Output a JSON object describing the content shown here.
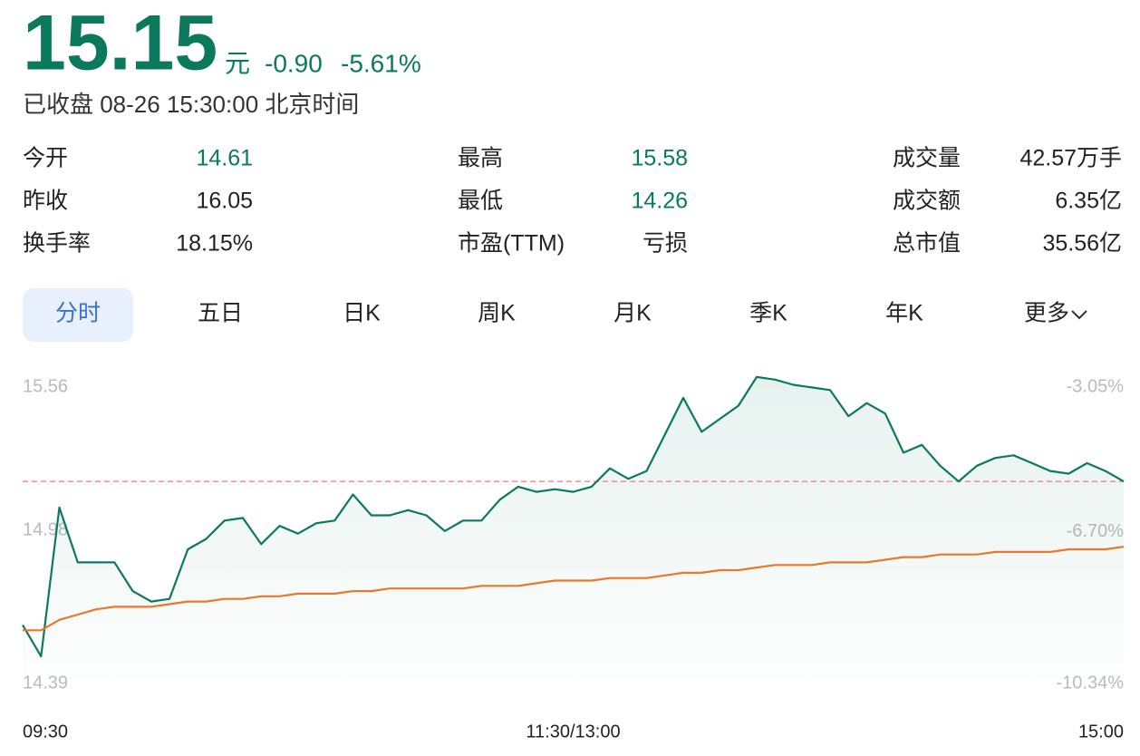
{
  "quote": {
    "price": "15.15",
    "unit": "元",
    "change": "-0.90",
    "change_pct": "-5.61%",
    "status": "已收盘 08-26 15:30:00 北京时间",
    "color": "#0b7a5c"
  },
  "stats": [
    [
      {
        "label": "今开",
        "value": "14.61",
        "color": "#0b7a5c"
      },
      {
        "label": "最高",
        "value": "15.58",
        "color": "#0b7a5c"
      },
      {
        "label": "成交量",
        "value": "42.57万手",
        "color": "#222222"
      }
    ],
    [
      {
        "label": "昨收",
        "value": "16.05",
        "color": "#222222"
      },
      {
        "label": "最低",
        "value": "14.26",
        "color": "#0b7a5c"
      },
      {
        "label": "成交额",
        "value": "6.35亿",
        "color": "#222222"
      }
    ],
    [
      {
        "label": "换手率",
        "value": "18.15%",
        "color": "#222222"
      },
      {
        "label": "市盈(TTM)",
        "value": "亏损",
        "color": "#222222"
      },
      {
        "label": "总市值",
        "value": "35.56亿",
        "color": "#222222"
      }
    ]
  ],
  "tabs": [
    "分时",
    "五日",
    "日K",
    "周K",
    "月K",
    "季K",
    "年K",
    "更多"
  ],
  "active_tab": 0,
  "chart_data": {
    "type": "line",
    "xlim": [
      0,
      60
    ],
    "xticks": [
      {
        "value": 0,
        "label": "09:30"
      },
      {
        "value": 30,
        "label": "11:30/13:00"
      },
      {
        "value": 60,
        "label": "15:00"
      }
    ],
    "ylim": [
      14.39,
      15.56
    ],
    "yticks": [
      15.56,
      14.98,
      14.39
    ],
    "y2lim": [
      -10.34,
      -3.05
    ],
    "y2ticks": [
      {
        "value": -3.05,
        "label": "-3.05%"
      },
      {
        "value": -6.7,
        "label": "-6.70%"
      },
      {
        "value": -10.34,
        "label": "-10.34%"
      }
    ],
    "ref_line": {
      "value": 15.15,
      "color": "#f08c8c"
    },
    "series": [
      {
        "color": "#0b7a5c",
        "area": true,
        "values": [
          14.6,
          14.48,
          15.05,
          14.84,
          14.84,
          14.84,
          14.73,
          14.69,
          14.7,
          14.89,
          14.93,
          15.0,
          15.01,
          14.91,
          14.98,
          14.95,
          14.99,
          15.0,
          15.1,
          15.02,
          15.02,
          15.04,
          15.02,
          14.96,
          15.0,
          15.0,
          15.08,
          15.13,
          15.11,
          15.12,
          15.11,
          15.13,
          15.2,
          15.16,
          15.19,
          15.33,
          15.47,
          15.34,
          15.39,
          15.44,
          15.55,
          15.54,
          15.52,
          15.51,
          15.5,
          15.4,
          15.45,
          15.41,
          15.26,
          15.29,
          15.21,
          15.15,
          15.21,
          15.24,
          15.25,
          15.22,
          15.19,
          15.18,
          15.22,
          15.19,
          15.15
        ]
      },
      {
        "color": "#e8782a",
        "values": [
          14.58,
          14.58,
          14.62,
          14.64,
          14.66,
          14.67,
          14.67,
          14.67,
          14.68,
          14.69,
          14.69,
          14.7,
          14.7,
          14.71,
          14.71,
          14.72,
          14.72,
          14.72,
          14.73,
          14.73,
          14.74,
          14.74,
          14.74,
          14.74,
          14.74,
          14.75,
          14.75,
          14.75,
          14.76,
          14.77,
          14.77,
          14.77,
          14.78,
          14.78,
          14.78,
          14.79,
          14.8,
          14.8,
          14.81,
          14.81,
          14.82,
          14.83,
          14.83,
          14.83,
          14.84,
          14.84,
          14.84,
          14.85,
          14.86,
          14.86,
          14.87,
          14.87,
          14.87,
          14.88,
          14.88,
          14.88,
          14.88,
          14.89,
          14.89,
          14.89,
          14.9
        ]
      }
    ]
  }
}
